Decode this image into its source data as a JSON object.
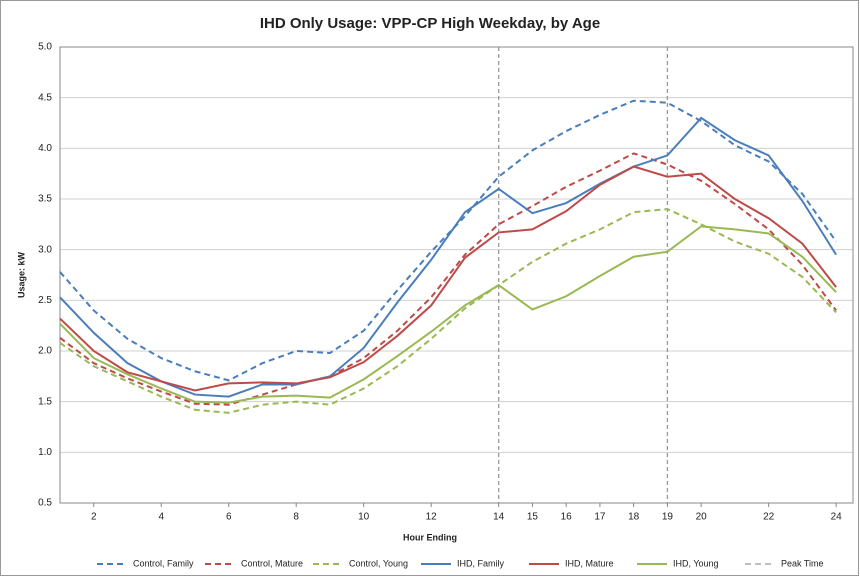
{
  "chart_data": {
    "type": "line",
    "title": "IHD Only Usage: VPP-CP High Weekday, by Age",
    "x_label": "Hour Ending",
    "y_label": "Usage: kW",
    "x": [
      1,
      2,
      3,
      4,
      5,
      6,
      7,
      8,
      9,
      10,
      11,
      12,
      13,
      14,
      15,
      16,
      17,
      18,
      19,
      20,
      21,
      22,
      23,
      24
    ],
    "xlim": [
      1,
      24.5
    ],
    "xticks": [
      2,
      4,
      6,
      8,
      10,
      12,
      14,
      15,
      16,
      17,
      18,
      19,
      20,
      22,
      24
    ],
    "ylim": [
      0.5,
      5
    ],
    "yticks": [
      0.5,
      {
        "value": 1,
        "label": "1.0"
      },
      1.5,
      {
        "value": 2,
        "label": "2.0"
      },
      2.5,
      {
        "value": 3,
        "label": "3.0"
      },
      3.5,
      {
        "value": 4,
        "label": "4.0"
      },
      4.5,
      {
        "value": 5,
        "label": "5.0"
      }
    ],
    "grid": true,
    "legend": "bottom",
    "series": [
      {
        "name": "Control, Family",
        "color": "#4a7ebb",
        "style": "dashed",
        "values": [
          2.78,
          2.4,
          2.12,
          1.93,
          1.8,
          1.71,
          1.88,
          2.0,
          1.98,
          2.2,
          2.6,
          2.98,
          3.33,
          3.72,
          3.98,
          4.17,
          4.33,
          4.47,
          4.45,
          4.27,
          4.03,
          3.87,
          3.55,
          3.08
        ]
      },
      {
        "name": "Control, Mature",
        "color": "#be4b48",
        "style": "dashed",
        "values": [
          2.13,
          1.88,
          1.73,
          1.6,
          1.48,
          1.47,
          1.57,
          1.67,
          1.75,
          1.93,
          2.2,
          2.53,
          2.95,
          3.25,
          3.43,
          3.62,
          3.78,
          3.95,
          3.84,
          3.68,
          3.45,
          3.2,
          2.85,
          2.4
        ]
      },
      {
        "name": "Control, Young",
        "color": "#98b954",
        "style": "dashed",
        "values": [
          2.08,
          1.85,
          1.7,
          1.55,
          1.42,
          1.39,
          1.47,
          1.5,
          1.47,
          1.63,
          1.85,
          2.12,
          2.42,
          2.65,
          2.88,
          3.06,
          3.2,
          3.37,
          3.4,
          3.25,
          3.08,
          2.96,
          2.73,
          2.38
        ]
      },
      {
        "name": "IHD, Family",
        "color": "#4a7ebb",
        "style": "solid",
        "values": [
          2.53,
          2.18,
          1.88,
          1.7,
          1.57,
          1.55,
          1.67,
          1.67,
          1.75,
          2.03,
          2.48,
          2.9,
          3.37,
          3.6,
          3.36,
          3.46,
          3.65,
          3.82,
          3.93,
          4.3,
          4.08,
          3.93,
          3.48,
          2.95
        ]
      },
      {
        "name": "IHD, Mature",
        "color": "#be4b48",
        "style": "solid",
        "values": [
          2.32,
          2.0,
          1.79,
          1.7,
          1.61,
          1.68,
          1.69,
          1.68,
          1.74,
          1.89,
          2.15,
          2.45,
          2.92,
          3.17,
          3.2,
          3.38,
          3.64,
          3.82,
          3.72,
          3.75,
          3.5,
          3.31,
          3.06,
          2.63
        ]
      },
      {
        "name": "IHD, Young",
        "color": "#98b954",
        "style": "solid",
        "values": [
          2.27,
          1.93,
          1.77,
          1.63,
          1.5,
          1.49,
          1.55,
          1.56,
          1.54,
          1.72,
          1.95,
          2.19,
          2.45,
          2.65,
          2.41,
          2.54,
          2.74,
          2.93,
          2.98,
          3.23,
          3.2,
          3.16,
          2.93,
          2.58
        ]
      }
    ],
    "peak_time": {
      "name": "Peak Time",
      "color": "#999999",
      "x": [
        14,
        19
      ]
    }
  }
}
